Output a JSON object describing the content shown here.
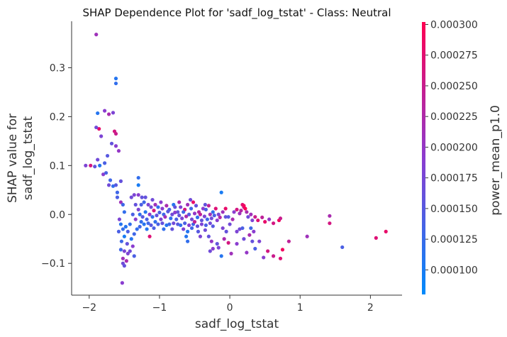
{
  "chart_data": {
    "type": "scatter",
    "title": "SHAP Dependence Plot for 'sadf_log_tstat' - Class: Neutral",
    "xlabel": "sadf_log_tstat",
    "ylabel_lines": [
      "SHAP value for",
      "sadf_log_tstat"
    ],
    "xlim": [
      -2.25,
      2.45
    ],
    "ylim": [
      -0.165,
      0.395
    ],
    "xticks": [
      -2,
      -1,
      0,
      1,
      2
    ],
    "xtick_labels": [
      "−2",
      "−1",
      "0",
      "1",
      "2"
    ],
    "yticks": [
      -0.1,
      0.0,
      0.1,
      0.2,
      0.3
    ],
    "ytick_labels": [
      "−0.1",
      "0.0",
      "0.1",
      "0.2",
      "0.3"
    ],
    "colorbar": {
      "label": "power_mean_p1.0",
      "range": [
        8e-05,
        0.000302
      ],
      "ticks": [
        0.0001,
        0.000125,
        0.00015,
        0.000175,
        0.0002,
        0.000225,
        0.00025,
        0.000275,
        0.0003
      ],
      "tick_labels": [
        "0.000100",
        "0.000125",
        "0.000150",
        "0.000175",
        "0.000200",
        "0.000225",
        "0.000250",
        "0.000275",
        "0.000300"
      ],
      "color_low": "#008afb",
      "color_mid": "#8b3cd0",
      "color_high": "#ff0051"
    },
    "grid": false,
    "legend": "none",
    "points": [
      {
        "x": -1.9,
        "y": 0.368,
        "c": 0.00021
      },
      {
        "x": -1.62,
        "y": 0.278,
        "c": 0.00011
      },
      {
        "x": -1.62,
        "y": 0.268,
        "c": 0.00012
      },
      {
        "x": -1.78,
        "y": 0.212,
        "c": 0.00019
      },
      {
        "x": -1.88,
        "y": 0.207,
        "c": 0.00011
      },
      {
        "x": -1.72,
        "y": 0.205,
        "c": 0.00022
      },
      {
        "x": -1.66,
        "y": 0.208,
        "c": 0.00018
      },
      {
        "x": -1.64,
        "y": 0.17,
        "c": 0.00026
      },
      {
        "x": -1.86,
        "y": 0.175,
        "c": 0.00028
      },
      {
        "x": -1.9,
        "y": 0.178,
        "c": 0.00017
      },
      {
        "x": -1.83,
        "y": 0.16,
        "c": 0.00018
      },
      {
        "x": -1.62,
        "y": 0.165,
        "c": 0.00025
      },
      {
        "x": -1.58,
        "y": 0.13,
        "c": 0.0002
      },
      {
        "x": -1.68,
        "y": 0.145,
        "c": 0.00016
      },
      {
        "x": -1.62,
        "y": 0.14,
        "c": 0.00019
      },
      {
        "x": -1.74,
        "y": 0.12,
        "c": 0.00015
      },
      {
        "x": -1.78,
        "y": 0.105,
        "c": 0.00014
      },
      {
        "x": -1.85,
        "y": 0.1,
        "c": 0.00011
      },
      {
        "x": -1.88,
        "y": 0.112,
        "c": 0.00017
      },
      {
        "x": -1.92,
        "y": 0.098,
        "c": 0.00016
      },
      {
        "x": -1.98,
        "y": 0.1,
        "c": 0.00026
      },
      {
        "x": -2.05,
        "y": 0.1,
        "c": 0.00018
      },
      {
        "x": -1.8,
        "y": 0.082,
        "c": 0.00019
      },
      {
        "x": -1.76,
        "y": 0.085,
        "c": 0.00014
      },
      {
        "x": -1.7,
        "y": 0.07,
        "c": 0.00013
      },
      {
        "x": -1.66,
        "y": 0.058,
        "c": 0.00012
      },
      {
        "x": -1.62,
        "y": 0.06,
        "c": 0.00015
      },
      {
        "x": -1.72,
        "y": 0.06,
        "c": 0.00017
      },
      {
        "x": -1.6,
        "y": 0.045,
        "c": 0.00013
      },
      {
        "x": -1.55,
        "y": 0.068,
        "c": 0.00016
      },
      {
        "x": -1.6,
        "y": 0.035,
        "c": 0.00014
      },
      {
        "x": -1.55,
        "y": 0.025,
        "c": 0.00021
      },
      {
        "x": -1.52,
        "y": 0.02,
        "c": 0.00013
      },
      {
        "x": -1.5,
        "y": 0.005,
        "c": 0.00012
      },
      {
        "x": -1.57,
        "y": -0.01,
        "c": 0.00018
      },
      {
        "x": -1.55,
        "y": -0.02,
        "c": 0.00011
      },
      {
        "x": -1.52,
        "y": -0.03,
        "c": 0.00012
      },
      {
        "x": -1.48,
        "y": -0.025,
        "c": 0.00011
      },
      {
        "x": -1.45,
        "y": -0.035,
        "c": 0.00014
      },
      {
        "x": -1.5,
        "y": -0.045,
        "c": 0.0001
      },
      {
        "x": -1.54,
        "y": -0.055,
        "c": 0.00013
      },
      {
        "x": -1.46,
        "y": -0.06,
        "c": 0.00016
      },
      {
        "x": -1.4,
        "y": -0.05,
        "c": 0.00011
      },
      {
        "x": -1.38,
        "y": -0.065,
        "c": 0.00019
      },
      {
        "x": -1.42,
        "y": -0.075,
        "c": 0.00017
      },
      {
        "x": -1.5,
        "y": -0.075,
        "c": 0.00018
      },
      {
        "x": -1.55,
        "y": -0.072,
        "c": 0.00013
      },
      {
        "x": -1.52,
        "y": -0.09,
        "c": 0.00021
      },
      {
        "x": -1.47,
        "y": -0.095,
        "c": 0.00022
      },
      {
        "x": -1.52,
        "y": -0.1,
        "c": 0.00017
      },
      {
        "x": -1.5,
        "y": -0.105,
        "c": 0.00016
      },
      {
        "x": -1.45,
        "y": -0.08,
        "c": 0.00018
      },
      {
        "x": -1.36,
        "y": -0.085,
        "c": 0.00014
      },
      {
        "x": -1.53,
        "y": -0.14,
        "c": 0.00019
      },
      {
        "x": -1.58,
        "y": -0.035,
        "c": 0.00014
      },
      {
        "x": -1.42,
        "y": -0.02,
        "c": 0.00012
      },
      {
        "x": -1.36,
        "y": -0.04,
        "c": 0.00013
      },
      {
        "x": -1.3,
        "y": 0.075,
        "c": 0.00012
      },
      {
        "x": -1.3,
        "y": 0.06,
        "c": 0.0001
      },
      {
        "x": -1.36,
        "y": 0.04,
        "c": 0.00018
      },
      {
        "x": -1.4,
        "y": 0.035,
        "c": 0.00017
      },
      {
        "x": -1.3,
        "y": 0.04,
        "c": 0.00019
      },
      {
        "x": -1.25,
        "y": 0.035,
        "c": 0.00016
      },
      {
        "x": -1.2,
        "y": 0.035,
        "c": 0.00016
      },
      {
        "x": -1.26,
        "y": 0.02,
        "c": 0.00014
      },
      {
        "x": -1.22,
        "y": 0.025,
        "c": 0.00013
      },
      {
        "x": -1.16,
        "y": 0.02,
        "c": 0.00018
      },
      {
        "x": -1.1,
        "y": 0.03,
        "c": 0.00017
      },
      {
        "x": -1.06,
        "y": 0.02,
        "c": 0.00021
      },
      {
        "x": -1.02,
        "y": 0.015,
        "c": 0.00012
      },
      {
        "x": -0.96,
        "y": 0.012,
        "c": 0.00019
      },
      {
        "x": -0.9,
        "y": 0.018,
        "c": 0.00022
      },
      {
        "x": -0.86,
        "y": 0.01,
        "c": 0.00014
      },
      {
        "x": -0.8,
        "y": 0.02,
        "c": 0.00011
      },
      {
        "x": -0.74,
        "y": 0.005,
        "c": 0.00016
      },
      {
        "x": -0.7,
        "y": 0.015,
        "c": 0.00018
      },
      {
        "x": -0.64,
        "y": 0.01,
        "c": 0.00026
      },
      {
        "x": -0.6,
        "y": 0.02,
        "c": 0.00021
      },
      {
        "x": -0.56,
        "y": 0.03,
        "c": 0.00017
      },
      {
        "x": -0.52,
        "y": 0.025,
        "c": 0.00028
      },
      {
        "x": -0.48,
        "y": 0.018,
        "c": 0.00016
      },
      {
        "x": -0.44,
        "y": 0.005,
        "c": 0.00023
      },
      {
        "x": -0.38,
        "y": 0.012,
        "c": 0.00019
      },
      {
        "x": -0.34,
        "y": 0.01,
        "c": 0.00014
      },
      {
        "x": -0.3,
        "y": 0.018,
        "c": 0.00024
      },
      {
        "x": -0.24,
        "y": 0.005,
        "c": 0.00012
      },
      {
        "x": -0.2,
        "y": 0.012,
        "c": 0.00027
      },
      {
        "x": -0.16,
        "y": 0.0,
        "c": 0.00018
      },
      {
        "x": -0.12,
        "y": 0.045,
        "c": 0.0001
      },
      {
        "x": -0.1,
        "y": 0.005,
        "c": 0.00021
      },
      {
        "x": -0.06,
        "y": -0.005,
        "c": 0.00016
      },
      {
        "x": -1.28,
        "y": 0.0,
        "c": 0.00012
      },
      {
        "x": -1.24,
        "y": -0.005,
        "c": 0.00015
      },
      {
        "x": -1.2,
        "y": 0.005,
        "c": 0.00011
      },
      {
        "x": -1.18,
        "y": -0.01,
        "c": 0.00014
      },
      {
        "x": -1.14,
        "y": 0.0,
        "c": 0.00019
      },
      {
        "x": -1.1,
        "y": -0.005,
        "c": 0.00012
      },
      {
        "x": -1.08,
        "y": 0.008,
        "c": 0.00026
      },
      {
        "x": -1.04,
        "y": -0.002,
        "c": 0.00016
      },
      {
        "x": -1.0,
        "y": 0.004,
        "c": 0.00014
      },
      {
        "x": -0.98,
        "y": -0.01,
        "c": 0.00018
      },
      {
        "x": -0.94,
        "y": 0.0,
        "c": 0.00013
      },
      {
        "x": -0.92,
        "y": -0.005,
        "c": 0.00021
      },
      {
        "x": -0.88,
        "y": 0.006,
        "c": 0.00015
      },
      {
        "x": -0.84,
        "y": -0.008,
        "c": 0.00012
      },
      {
        "x": -0.82,
        "y": 0.0,
        "c": 0.00017
      },
      {
        "x": -0.78,
        "y": 0.004,
        "c": 0.00019
      },
      {
        "x": -0.76,
        "y": -0.01,
        "c": 0.00014
      },
      {
        "x": -0.72,
        "y": -0.002,
        "c": 0.00016
      },
      {
        "x": -0.68,
        "y": -0.008,
        "c": 0.00018
      },
      {
        "x": -0.66,
        "y": 0.005,
        "c": 0.00013
      },
      {
        "x": -0.62,
        "y": -0.004,
        "c": 0.00022
      },
      {
        "x": -0.58,
        "y": 0.0,
        "c": 0.00015
      },
      {
        "x": -0.54,
        "y": -0.01,
        "c": 0.00017
      },
      {
        "x": -0.5,
        "y": 0.002,
        "c": 0.0002
      },
      {
        "x": -0.46,
        "y": -0.006,
        "c": 0.00012
      },
      {
        "x": -0.42,
        "y": 0.0,
        "c": 0.00024
      },
      {
        "x": -0.4,
        "y": -0.012,
        "c": 0.00016
      },
      {
        "x": -0.36,
        "y": -0.004,
        "c": 0.00018
      },
      {
        "x": -0.32,
        "y": -0.01,
        "c": 0.00013
      },
      {
        "x": -0.28,
        "y": 0.0,
        "c": 0.00021
      },
      {
        "x": -0.26,
        "y": -0.008,
        "c": 0.00017
      },
      {
        "x": -0.22,
        "y": -0.002,
        "c": 0.00014
      },
      {
        "x": -0.18,
        "y": -0.012,
        "c": 0.00019
      },
      {
        "x": -0.14,
        "y": -0.006,
        "c": 0.00023
      },
      {
        "x": -1.26,
        "y": -0.015,
        "c": 0.00012
      },
      {
        "x": -1.22,
        "y": -0.02,
        "c": 0.00011
      },
      {
        "x": -1.16,
        "y": -0.018,
        "c": 0.00013
      },
      {
        "x": -1.12,
        "y": -0.022,
        "c": 0.00015
      },
      {
        "x": -1.06,
        "y": -0.015,
        "c": 0.00012
      },
      {
        "x": -1.02,
        "y": -0.02,
        "c": 0.00014
      },
      {
        "x": -0.96,
        "y": -0.018,
        "c": 0.00016
      },
      {
        "x": -0.9,
        "y": -0.022,
        "c": 0.00011
      },
      {
        "x": -0.86,
        "y": -0.02,
        "c": 0.00013
      },
      {
        "x": -0.8,
        "y": -0.018,
        "c": 0.00017
      },
      {
        "x": -0.74,
        "y": -0.02,
        "c": 0.00015
      },
      {
        "x": -0.7,
        "y": -0.022,
        "c": 0.00012
      },
      {
        "x": -0.64,
        "y": -0.018,
        "c": 0.00014
      },
      {
        "x": -0.58,
        "y": -0.022,
        "c": 0.00019
      },
      {
        "x": -0.52,
        "y": -0.02,
        "c": 0.00013
      },
      {
        "x": -0.46,
        "y": -0.024,
        "c": 0.00016
      },
      {
        "x": -0.4,
        "y": -0.02,
        "c": 0.00018
      },
      {
        "x": -0.34,
        "y": -0.022,
        "c": 0.00014
      },
      {
        "x": -0.28,
        "y": -0.018,
        "c": 0.00017
      },
      {
        "x": -0.24,
        "y": -0.024,
        "c": 0.00015
      },
      {
        "x": -1.32,
        "y": -0.03,
        "c": 0.00012
      },
      {
        "x": -1.28,
        "y": -0.025,
        "c": 0.00013
      },
      {
        "x": -1.18,
        "y": -0.03,
        "c": 0.00011
      },
      {
        "x": -1.08,
        "y": -0.028,
        "c": 0.00014
      },
      {
        "x": -0.94,
        "y": -0.03,
        "c": 0.00012
      },
      {
        "x": -0.82,
        "y": -0.03,
        "c": 0.00016
      },
      {
        "x": -0.66,
        "y": -0.03,
        "c": 0.00018
      },
      {
        "x": -0.54,
        "y": -0.028,
        "c": 0.00013
      },
      {
        "x": -0.6,
        "y": -0.035,
        "c": 0.00011
      },
      {
        "x": -0.45,
        "y": -0.035,
        "c": 0.00015
      },
      {
        "x": -0.35,
        "y": -0.032,
        "c": 0.00017
      },
      {
        "x": -1.3,
        "y": 0.01,
        "c": 0.00018
      },
      {
        "x": -1.34,
        "y": 0.02,
        "c": 0.00016
      },
      {
        "x": -1.38,
        "y": 0.0,
        "c": 0.00014
      },
      {
        "x": -1.34,
        "y": -0.01,
        "c": 0.00019
      },
      {
        "x": -1.14,
        "y": -0.045,
        "c": 0.00027
      },
      {
        "x": -0.62,
        "y": -0.045,
        "c": 0.00011
      },
      {
        "x": -0.6,
        "y": -0.055,
        "c": 0.00012
      },
      {
        "x": -0.42,
        "y": -0.045,
        "c": 0.00018
      },
      {
        "x": -0.3,
        "y": -0.045,
        "c": 0.00016
      },
      {
        "x": -0.26,
        "y": -0.055,
        "c": 0.0002
      },
      {
        "x": -0.28,
        "y": -0.075,
        "c": 0.00017
      },
      {
        "x": -0.24,
        "y": -0.07,
        "c": 0.00019
      },
      {
        "x": -0.18,
        "y": -0.06,
        "c": 0.00016
      },
      {
        "x": -0.16,
        "y": -0.068,
        "c": 0.00018
      },
      {
        "x": -0.12,
        "y": -0.085,
        "c": 0.00011
      },
      {
        "x": -0.08,
        "y": -0.05,
        "c": 0.00022
      },
      {
        "x": -0.02,
        "y": -0.058,
        "c": 0.00026
      },
      {
        "x": 0.02,
        "y": -0.08,
        "c": 0.00021
      },
      {
        "x": 0.1,
        "y": -0.06,
        "c": 0.00019
      },
      {
        "x": 0.2,
        "y": -0.05,
        "c": 0.00017
      },
      {
        "x": 0.24,
        "y": -0.078,
        "c": 0.0002
      },
      {
        "x": 0.28,
        "y": -0.042,
        "c": 0.00022
      },
      {
        "x": 0.32,
        "y": -0.055,
        "c": 0.00016
      },
      {
        "x": 0.36,
        "y": -0.07,
        "c": 0.00014
      },
      {
        "x": 0.42,
        "y": -0.055,
        "c": 0.00018
      },
      {
        "x": 0.48,
        "y": -0.088,
        "c": 0.00019
      },
      {
        "x": 0.54,
        "y": -0.075,
        "c": 0.00026
      },
      {
        "x": 0.62,
        "y": -0.085,
        "c": 0.00025
      },
      {
        "x": 0.72,
        "y": -0.09,
        "c": 0.00027
      },
      {
        "x": 0.75,
        "y": -0.072,
        "c": 0.00029
      },
      {
        "x": 0.1,
        "y": -0.035,
        "c": 0.00018
      },
      {
        "x": 0.14,
        "y": -0.03,
        "c": 0.00017
      },
      {
        "x": 0.18,
        "y": -0.028,
        "c": 0.00014
      },
      {
        "x": 0.3,
        "y": -0.028,
        "c": 0.00013
      },
      {
        "x": 0.34,
        "y": -0.035,
        "c": 0.00019
      },
      {
        "x": -0.1,
        "y": -0.028,
        "c": 0.00018
      },
      {
        "x": -0.05,
        "y": -0.035,
        "c": 0.00016
      },
      {
        "x": 0.0,
        "y": -0.02,
        "c": 0.00017
      },
      {
        "x": -0.02,
        "y": -0.005,
        "c": 0.00015
      },
      {
        "x": 0.04,
        "y": -0.01,
        "c": 0.00022
      },
      {
        "x": 0.06,
        "y": 0.005,
        "c": 0.00019
      },
      {
        "x": 0.1,
        "y": 0.01,
        "c": 0.00026
      },
      {
        "x": 0.14,
        "y": 0.002,
        "c": 0.00021
      },
      {
        "x": 0.16,
        "y": 0.008,
        "c": 0.00023
      },
      {
        "x": 0.18,
        "y": 0.02,
        "c": 0.00027
      },
      {
        "x": 0.2,
        "y": 0.015,
        "c": 0.00024
      },
      {
        "x": 0.22,
        "y": 0.012,
        "c": 0.0003
      },
      {
        "x": 0.24,
        "y": 0.005,
        "c": 0.00022
      },
      {
        "x": 0.26,
        "y": -0.005,
        "c": 0.00017
      },
      {
        "x": 0.3,
        "y": 0.0,
        "c": 0.00021
      },
      {
        "x": 0.32,
        "y": -0.012,
        "c": 0.00018
      },
      {
        "x": 0.36,
        "y": -0.005,
        "c": 0.00025
      },
      {
        "x": 0.4,
        "y": -0.012,
        "c": 0.00027
      },
      {
        "x": 0.46,
        "y": -0.006,
        "c": 0.00024
      },
      {
        "x": 0.5,
        "y": -0.015,
        "c": 0.00028
      },
      {
        "x": 0.56,
        "y": -0.01,
        "c": 0.0002
      },
      {
        "x": 0.62,
        "y": -0.018,
        "c": 0.00026
      },
      {
        "x": 0.7,
        "y": -0.012,
        "c": 0.00029
      },
      {
        "x": 0.72,
        "y": -0.008,
        "c": 0.00025
      },
      {
        "x": 0.84,
        "y": -0.055,
        "c": 0.00024
      },
      {
        "x": 1.1,
        "y": -0.045,
        "c": 0.00021
      },
      {
        "x": 1.42,
        "y": -0.003,
        "c": 0.00022
      },
      {
        "x": 1.42,
        "y": -0.018,
        "c": 0.00026
      },
      {
        "x": 1.6,
        "y": -0.067,
        "c": 0.00014
      },
      {
        "x": 2.08,
        "y": -0.048,
        "c": 0.00027
      },
      {
        "x": 2.22,
        "y": -0.035,
        "c": 0.00028
      },
      {
        "x": -0.72,
        "y": 0.025,
        "c": 0.00022
      },
      {
        "x": -0.78,
        "y": 0.015,
        "c": 0.00016
      },
      {
        "x": -0.98,
        "y": 0.025,
        "c": 0.00019
      },
      {
        "x": -1.12,
        "y": 0.015,
        "c": 0.00017
      },
      {
        "x": -0.55,
        "y": 0.012,
        "c": 0.00013
      },
      {
        "x": -0.35,
        "y": 0.02,
        "c": 0.00016
      },
      {
        "x": -0.06,
        "y": 0.012,
        "c": 0.00028
      },
      {
        "x": 0.2,
        "y": 0.018,
        "c": 0.00029
      },
      {
        "x": -0.5,
        "y": -0.015,
        "c": 0.00024
      }
    ]
  }
}
